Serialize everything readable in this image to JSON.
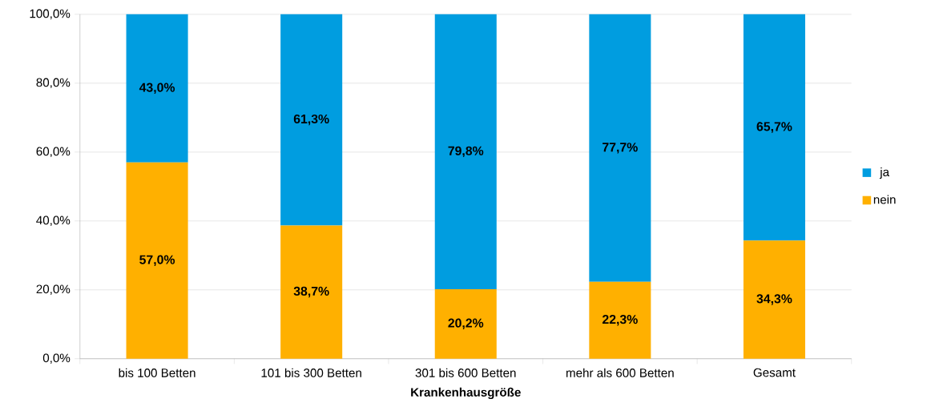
{
  "chart_data": {
    "type": "bar",
    "stacked": true,
    "xlabel": "Krankenhausgröße",
    "categories": [
      "bis 100 Betten",
      "101 bis 300 Betten",
      "301 bis 600 Betten",
      "mehr als 600 Betten",
      "Gesamt"
    ],
    "series": [
      {
        "name": "nein",
        "color": "#ffb000",
        "values": [
          57.0,
          38.7,
          20.2,
          22.3,
          34.3
        ],
        "value_labels": [
          "57,0%",
          "38,7%",
          "20,2%",
          "22,3%",
          "34,3%"
        ]
      },
      {
        "name": "ja",
        "color": "#009de0",
        "values": [
          43.0,
          61.3,
          79.8,
          77.7,
          65.7
        ],
        "value_labels": [
          "43,0%",
          "61,3%",
          "79,8%",
          "77,7%",
          "65,7%"
        ]
      }
    ],
    "ylim": [
      0,
      100
    ],
    "yticks": [
      {
        "value": 0,
        "label": "0,0%"
      },
      {
        "value": 20,
        "label": "20,0%"
      },
      {
        "value": 40,
        "label": "40,0%"
      },
      {
        "value": 60,
        "label": "60,0%"
      },
      {
        "value": 80,
        "label": "80,0%"
      },
      {
        "value": 100,
        "label": "100,0%"
      }
    ],
    "grid": "y",
    "legend": "right"
  }
}
